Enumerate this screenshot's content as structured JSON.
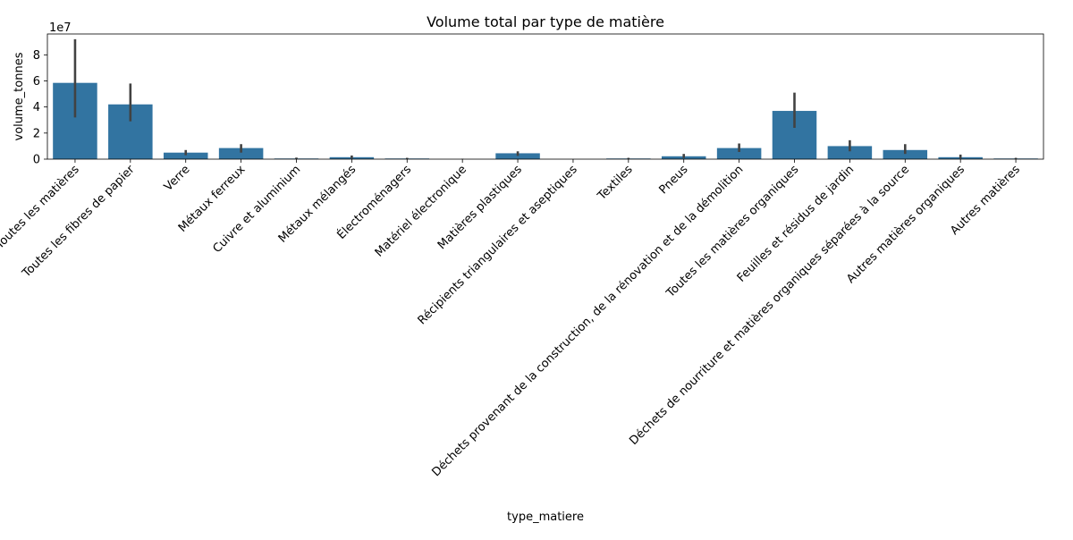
{
  "chart_data": {
    "type": "bar",
    "title": "Volume total par type de matière",
    "xlabel": "type_matiere",
    "ylabel": "volume_tonnes",
    "offset_label": "1e7",
    "ylim": [
      0,
      9.6
    ],
    "yticks": [
      "0",
      "2",
      "4",
      "6",
      "8"
    ],
    "bar_color": "#3274a1",
    "errorbar_color": "#424242",
    "categories": [
      "Toutes les matières",
      "Toutes les fibres de papier",
      "Verre",
      "Métaux ferreux",
      "Cuivre et aluminium",
      "Métaux mélangés",
      "Électroménagers",
      "Matériel électronique",
      "Matières plastiques",
      "Récipients triangulaires et aseptiques",
      "Textiles",
      "Pneus",
      "Déchets provenant de la construction, de la rénovation et de la démolition",
      "Toutes les matières organiques",
      "Feuilles et résidus de jardin",
      "Déchets de nourriture et matières organiques séparées à la source",
      "Autres matières organiques",
      "Autres matières"
    ],
    "values": [
      5.85,
      4.2,
      0.5,
      0.85,
      0.05,
      0.15,
      0.05,
      0.0,
      0.45,
      0.0,
      0.05,
      0.22,
      0.85,
      3.7,
      1.0,
      0.7,
      0.15,
      0.05
    ],
    "error_low": [
      3.2,
      2.9,
      0.3,
      0.5,
      0.02,
      0.05,
      0.02,
      0.0,
      0.25,
      0.0,
      0.02,
      0.08,
      0.55,
      2.4,
      0.6,
      0.4,
      0.05,
      0.02
    ],
    "error_high": [
      9.2,
      5.8,
      0.7,
      1.15,
      0.12,
      0.28,
      0.1,
      0.03,
      0.6,
      0.0,
      0.1,
      0.4,
      1.2,
      5.1,
      1.45,
      1.15,
      0.35,
      0.1
    ]
  }
}
